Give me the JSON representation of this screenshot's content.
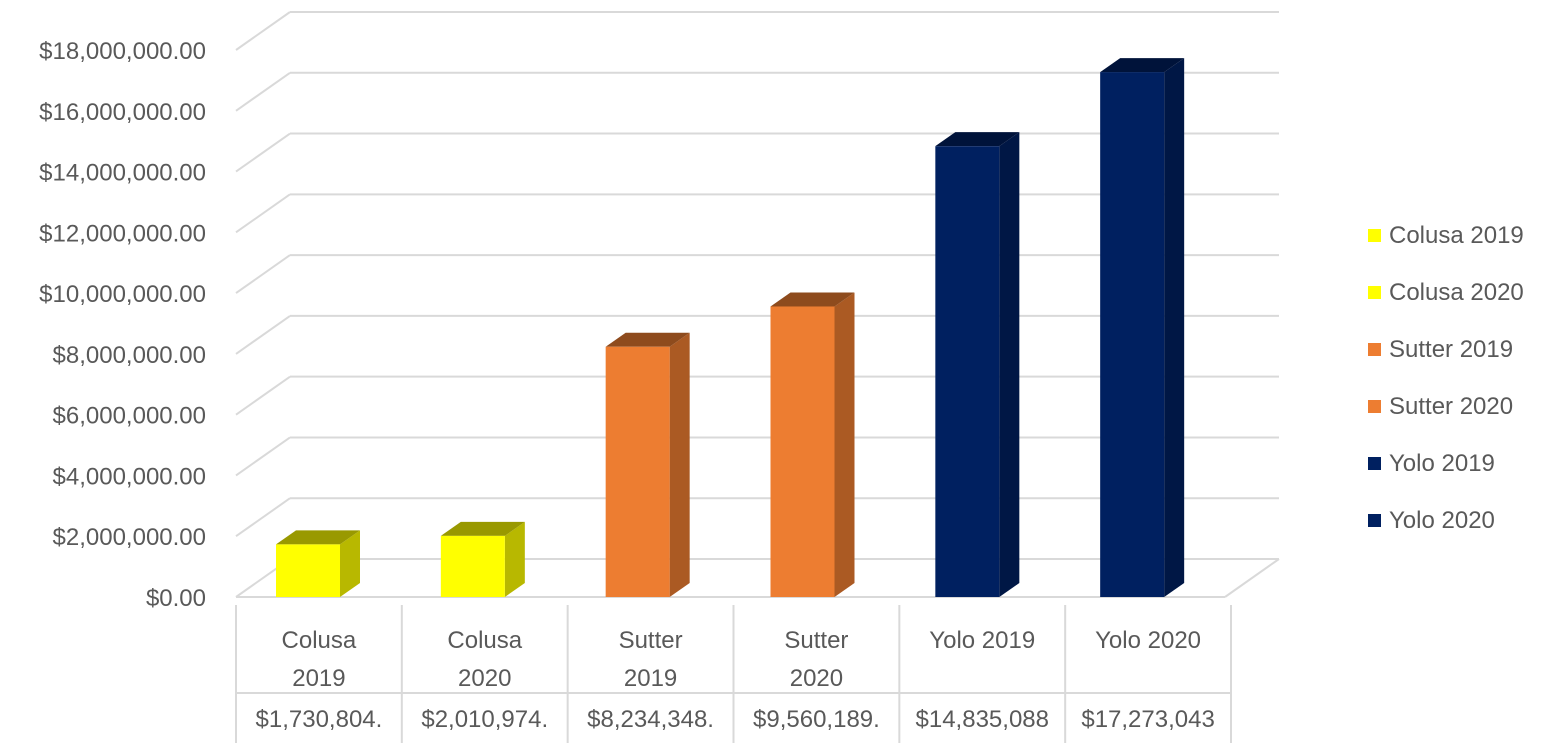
{
  "chart_data": {
    "type": "bar",
    "title": "",
    "xlabel": "",
    "ylabel": "",
    "ylim": [
      0,
      18000000
    ],
    "y_ticks": [
      "$0.00",
      "$2,000,000.00",
      "$4,000,000.00",
      "$6,000,000.00",
      "$8,000,000.00",
      "$10,000,000.00",
      "$12,000,000.00",
      "$14,000,000.00",
      "$16,000,000.00",
      "$18,000,000.00"
    ],
    "y_tick_values": [
      0,
      2000000,
      4000000,
      6000000,
      8000000,
      10000000,
      12000000,
      14000000,
      16000000,
      18000000
    ],
    "grid": true,
    "legend_position": "right",
    "style": "3d-column-with-data-table",
    "categories": [
      [
        "Colusa",
        "2019"
      ],
      [
        "Colusa",
        "2020"
      ],
      [
        "Sutter",
        "2019"
      ],
      [
        "Sutter",
        "2020"
      ],
      [
        "Yolo 2019"
      ],
      [
        "Yolo 2020"
      ]
    ],
    "series": [
      {
        "name": "Colusa 2019",
        "color": "#ffff00",
        "values": [
          1730804,
          null,
          null,
          null,
          null,
          null
        ]
      },
      {
        "name": "Colusa 2020",
        "color": "#ffff00",
        "values": [
          null,
          2010974,
          null,
          null,
          null,
          null
        ]
      },
      {
        "name": "Sutter 2019",
        "color": "#ed7d31",
        "values": [
          null,
          null,
          8234348,
          null,
          null,
          null
        ]
      },
      {
        "name": "Sutter 2020",
        "color": "#ed7d31",
        "values": [
          null,
          null,
          null,
          9560189,
          null,
          null
        ]
      },
      {
        "name": "Yolo 2019",
        "color": "#002060",
        "values": [
          null,
          null,
          null,
          null,
          14835088,
          null
        ]
      },
      {
        "name": "Yolo 2020",
        "color": "#002060",
        "values": [
          null,
          null,
          null,
          null,
          null,
          17273043
        ]
      }
    ],
    "data_table_labels": [
      "$1,730,804.",
      "$2,010,974.",
      "$8,234,348.",
      "$9,560,189.",
      "$14,835,088",
      "$17,273,043"
    ]
  },
  "legend": {
    "items": [
      {
        "label": "Colusa 2019",
        "color": "#ffff00"
      },
      {
        "label": "Colusa 2020",
        "color": "#ffff00"
      },
      {
        "label": "Sutter 2019",
        "color": "#ed7d31"
      },
      {
        "label": "Sutter 2020",
        "color": "#ed7d31"
      },
      {
        "label": "Yolo 2019",
        "color": "#002060"
      },
      {
        "label": "Yolo 2020",
        "color": "#002060"
      }
    ]
  }
}
